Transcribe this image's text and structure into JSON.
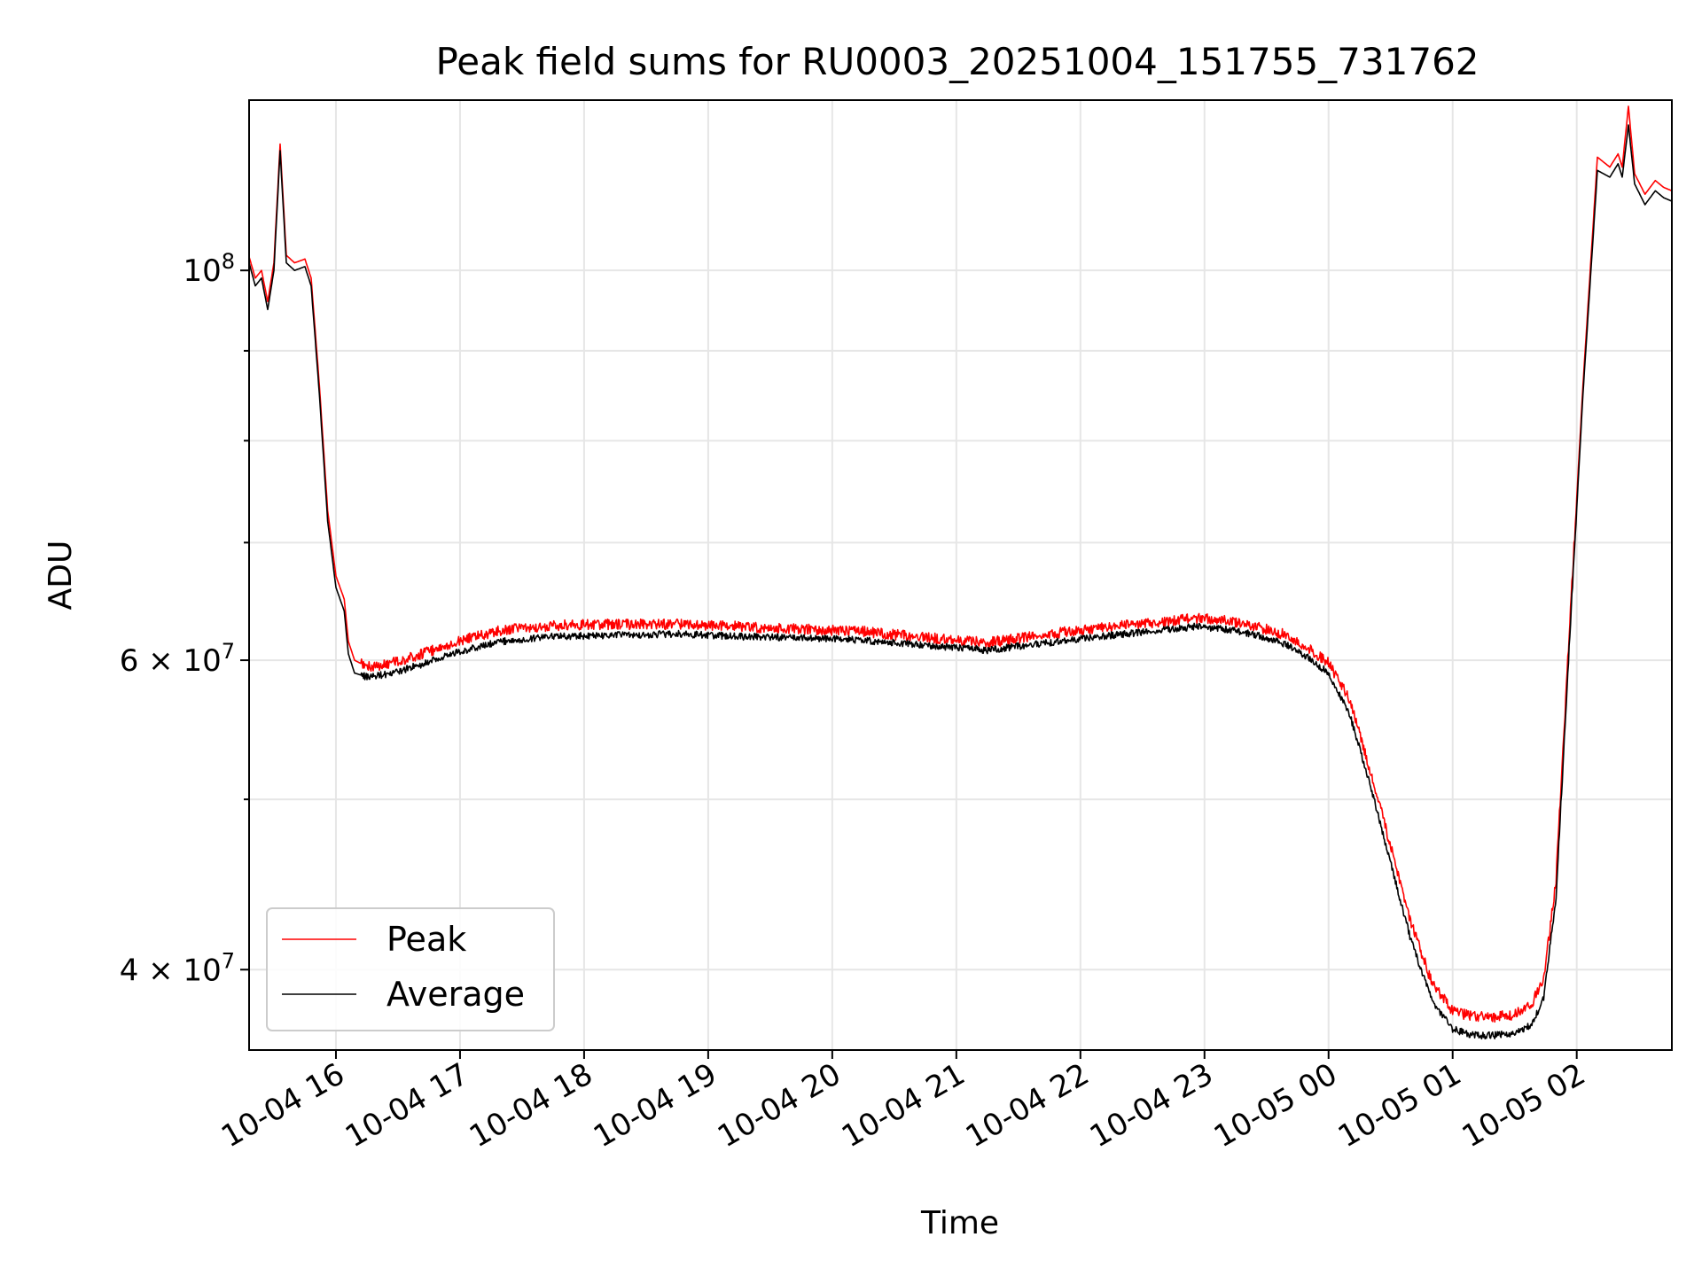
{
  "chart_data": {
    "type": "line",
    "title": "Peak field sums for RU0003_20251004_151755_731762",
    "xlabel": "Time",
    "ylabel": "ADU",
    "y_scale": "log",
    "ylim": [
      36000000,
      125000000
    ],
    "xlim": [
      "2025-10-04 15:18",
      "2025-10-05 02:46"
    ],
    "grid": true,
    "legend_position": "lower-left",
    "x_ticks": [
      {
        "value": "2025-10-04 16:00",
        "label": "10-04 16"
      },
      {
        "value": "2025-10-04 17:00",
        "label": "10-04 17"
      },
      {
        "value": "2025-10-04 18:00",
        "label": "10-04 18"
      },
      {
        "value": "2025-10-04 19:00",
        "label": "10-04 19"
      },
      {
        "value": "2025-10-04 20:00",
        "label": "10-04 20"
      },
      {
        "value": "2025-10-04 21:00",
        "label": "10-04 21"
      },
      {
        "value": "2025-10-04 22:00",
        "label": "10-04 22"
      },
      {
        "value": "2025-10-04 23:00",
        "label": "10-04 23"
      },
      {
        "value": "2025-10-05 00:00",
        "label": "10-05 00"
      },
      {
        "value": "2025-10-05 01:00",
        "label": "10-05 01"
      },
      {
        "value": "2025-10-05 02:00",
        "label": "10-05 02"
      }
    ],
    "y_major_ticks": [
      {
        "value": 40000000,
        "mantissa": "4",
        "exponent": "7"
      },
      {
        "value": 60000000,
        "mantissa": "6",
        "exponent": "7"
      },
      {
        "value": 100000000,
        "mantissa": "",
        "exponent": "8"
      }
    ],
    "y_minor_ticks": [
      50000000,
      70000000,
      80000000,
      90000000
    ],
    "series": [
      {
        "name": "Average",
        "color": "#000000",
        "x": [
          "2025-10-04 15:18",
          "2025-10-04 15:21",
          "2025-10-04 15:24",
          "2025-10-04 15:27",
          "2025-10-04 15:30",
          "2025-10-04 15:33",
          "2025-10-04 15:36",
          "2025-10-04 15:40",
          "2025-10-04 15:45",
          "2025-10-04 15:48",
          "2025-10-04 15:52",
          "2025-10-04 15:56",
          "2025-10-04 16:00",
          "2025-10-04 16:04",
          "2025-10-04 16:06",
          "2025-10-04 16:09",
          "2025-10-04 16:15",
          "2025-10-04 16:25",
          "2025-10-04 16:40",
          "2025-10-04 17:00",
          "2025-10-04 17:20",
          "2025-10-04 17:45",
          "2025-10-04 18:15",
          "2025-10-04 18:45",
          "2025-10-04 19:15",
          "2025-10-04 19:45",
          "2025-10-04 20:15",
          "2025-10-04 20:45",
          "2025-10-04 21:15",
          "2025-10-04 21:45",
          "2025-10-04 22:15",
          "2025-10-04 22:40",
          "2025-10-04 22:55",
          "2025-10-04 23:10",
          "2025-10-04 23:25",
          "2025-10-04 23:40",
          "2025-10-04 23:50",
          "2025-10-05 00:00",
          "2025-10-05 00:10",
          "2025-10-05 00:20",
          "2025-10-05 00:30",
          "2025-10-05 00:40",
          "2025-10-05 00:50",
          "2025-10-05 01:00",
          "2025-10-05 01:10",
          "2025-10-05 01:20",
          "2025-10-05 01:30",
          "2025-10-05 01:38",
          "2025-10-05 01:44",
          "2025-10-05 01:50",
          "2025-10-05 01:56",
          "2025-10-05 02:03",
          "2025-10-05 02:10",
          "2025-10-05 02:16",
          "2025-10-05 02:20",
          "2025-10-05 02:22",
          "2025-10-05 02:25",
          "2025-10-05 02:28",
          "2025-10-05 02:33",
          "2025-10-05 02:38",
          "2025-10-05 02:42",
          "2025-10-05 02:46"
        ],
        "y": [
          101000000,
          98000000,
          99000000,
          95000000,
          100000000,
          117000000,
          101000000,
          100000000,
          100500000,
          98000000,
          85000000,
          72000000,
          66000000,
          64000000,
          60500000,
          59000000,
          58700000,
          58900000,
          59600000,
          60700000,
          61500000,
          61900000,
          62000000,
          62100000,
          61900000,
          61800000,
          61600000,
          61200000,
          60800000,
          61400000,
          62000000,
          62400000,
          62700000,
          62500000,
          62000000,
          61200000,
          60200000,
          59000000,
          56000000,
          51000000,
          46000000,
          41500000,
          38400000,
          37000000,
          36700000,
          36700000,
          36800000,
          37200000,
          38500000,
          44000000,
          60000000,
          85000000,
          114000000,
          113000000,
          115000000,
          113000000,
          121000000,
          112000000,
          109000000,
          111000000,
          110000000,
          109500000
        ]
      },
      {
        "name": "Peak",
        "color": "#ff0000",
        "x": [
          "2025-10-04 15:18",
          "2025-10-04 15:21",
          "2025-10-04 15:24",
          "2025-10-04 15:27",
          "2025-10-04 15:30",
          "2025-10-04 15:33",
          "2025-10-04 15:36",
          "2025-10-04 15:40",
          "2025-10-04 15:45",
          "2025-10-04 15:48",
          "2025-10-04 15:52",
          "2025-10-04 15:56",
          "2025-10-04 16:00",
          "2025-10-04 16:04",
          "2025-10-04 16:06",
          "2025-10-04 16:09",
          "2025-10-04 16:15",
          "2025-10-04 16:25",
          "2025-10-04 16:40",
          "2025-10-04 17:00",
          "2025-10-04 17:20",
          "2025-10-04 17:45",
          "2025-10-04 18:15",
          "2025-10-04 18:45",
          "2025-10-04 19:15",
          "2025-10-04 19:45",
          "2025-10-04 20:15",
          "2025-10-04 20:45",
          "2025-10-04 21:15",
          "2025-10-04 21:45",
          "2025-10-04 22:15",
          "2025-10-04 22:40",
          "2025-10-04 22:55",
          "2025-10-04 23:10",
          "2025-10-04 23:25",
          "2025-10-04 23:40",
          "2025-10-04 23:50",
          "2025-10-05 00:00",
          "2025-10-05 00:10",
          "2025-10-05 00:20",
          "2025-10-05 00:30",
          "2025-10-05 00:40",
          "2025-10-05 00:50",
          "2025-10-05 01:00",
          "2025-10-05 01:10",
          "2025-10-05 01:20",
          "2025-10-05 01:30",
          "2025-10-05 01:38",
          "2025-10-05 01:44",
          "2025-10-05 01:50",
          "2025-10-05 01:56",
          "2025-10-05 02:03",
          "2025-10-05 02:10",
          "2025-10-05 02:16",
          "2025-10-05 02:20",
          "2025-10-05 02:22",
          "2025-10-05 02:25",
          "2025-10-05 02:28",
          "2025-10-05 02:33",
          "2025-10-05 02:38",
          "2025-10-05 02:42",
          "2025-10-05 02:46"
        ],
        "y": [
          101800000,
          99000000,
          100000000,
          96000000,
          101000000,
          118000000,
          102000000,
          101000000,
          101500000,
          99000000,
          86000000,
          73000000,
          67000000,
          65000000,
          61500000,
          60000000,
          59500000,
          59700000,
          60400000,
          61600000,
          62400000,
          62800000,
          62900000,
          62900000,
          62700000,
          62500000,
          62300000,
          61800000,
          61400000,
          62100000,
          62700000,
          63100000,
          63400000,
          63200000,
          62700000,
          62000000,
          61000000,
          59800000,
          57000000,
          52000000,
          47000000,
          42500000,
          39300000,
          37900000,
          37600000,
          37600000,
          37700000,
          38200000,
          39500000,
          45000000,
          61000000,
          86000000,
          116000000,
          114500000,
          116500000,
          114500000,
          124000000,
          113500000,
          110500000,
          112500000,
          111500000,
          111000000
        ]
      }
    ]
  }
}
